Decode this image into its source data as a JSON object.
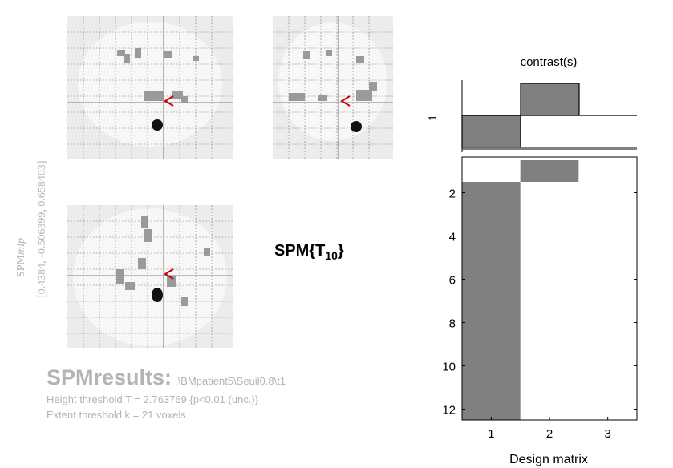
{
  "side_label": {
    "prefix": "SPM",
    "suffix": "mip",
    "coords": "[0.4384, -0.506399, 0.658403]"
  },
  "spm_title": {
    "main": "SPM{T",
    "sub": "10",
    "close": "}"
  },
  "results": {
    "title": "SPMresults:",
    "path": ".\\BMpatient5\\Seuil0.8\\t1",
    "height_threshold": "Height threshold T = 2.763769  {p<0.01 (unc.)}",
    "extent_threshold": "Extent threshold k = 21 voxels"
  },
  "colors": {
    "bar_fill": "#808080",
    "bar_stroke": "#000000",
    "mip_grid": "#7a7a7a",
    "cursor": "#cc0000"
  },
  "chart_data": [
    {
      "type": "bar",
      "title": "contrast(s)",
      "ylabel": "1",
      "categories": [
        1,
        2,
        3
      ],
      "values": [
        -1,
        1,
        0
      ]
    },
    {
      "type": "heatmap",
      "title": "",
      "xlabel": "Design matrix",
      "x_ticks": [
        "1",
        "2",
        "3"
      ],
      "y_ticks": [
        "2",
        "4",
        "6",
        "8",
        "10",
        "12"
      ],
      "rows": 12,
      "columns": 3,
      "column_regressors": [
        {
          "column": 1,
          "filled_rows": [
            2,
            12
          ]
        },
        {
          "column": 2,
          "filled_rows": [
            1,
            1
          ]
        },
        {
          "column": 3,
          "filled_rows": []
        }
      ]
    }
  ]
}
